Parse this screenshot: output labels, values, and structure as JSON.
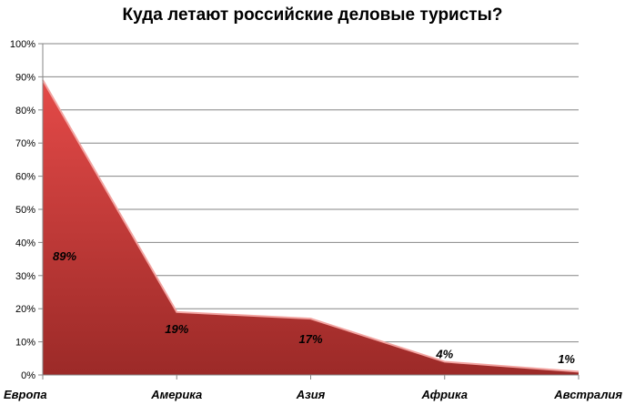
{
  "chart_data": {
    "type": "area",
    "title": "Куда летают российские деловые туристы?",
    "categories": [
      "Европа",
      "Америка",
      "Азия",
      "Африка",
      "Австралия"
    ],
    "values": [
      89,
      19,
      17,
      4,
      1
    ],
    "data_labels": [
      "89%",
      "19%",
      "17%",
      "4%",
      "1%"
    ],
    "ylim": [
      0,
      100
    ],
    "y_ticks": [
      0,
      10,
      20,
      30,
      40,
      50,
      60,
      70,
      80,
      90,
      100
    ],
    "y_tick_labels": [
      "0%",
      "10%",
      "20%",
      "30%",
      "40%",
      "50%",
      "60%",
      "70%",
      "80%",
      "90%",
      "100%"
    ],
    "grid": true,
    "legend": "none",
    "colors": {
      "fill_top": "#e44a48",
      "fill_bottom": "#9c2a28",
      "edge": "#f2a3a0",
      "grid": "#868686"
    }
  }
}
